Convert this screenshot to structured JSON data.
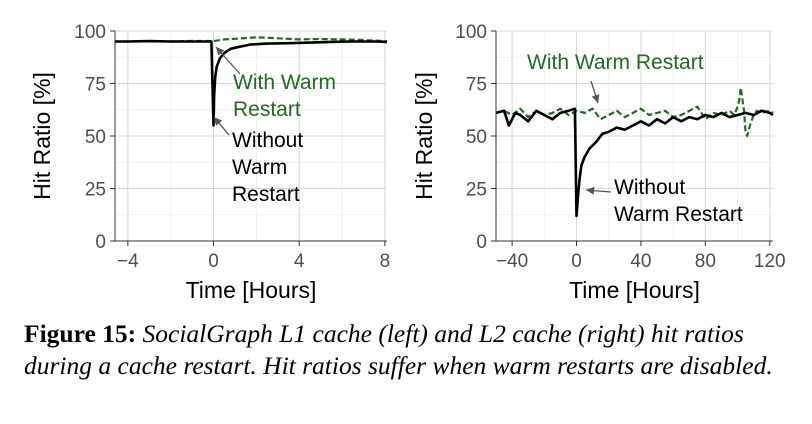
{
  "chart_data": [
    {
      "type": "line",
      "xlabel": "Time [Hours]",
      "ylabel": "Hit Ratio [%]",
      "xlim": [
        -4.6,
        8.1
      ],
      "ylim": [
        0,
        100
      ],
      "xticks": [
        -4,
        0,
        4,
        8
      ],
      "yticks": [
        0,
        25,
        50,
        75,
        100
      ],
      "tick_labels_x": [
        "−4",
        "0",
        "4",
        "8"
      ],
      "tick_labels_y": [
        "0",
        "25",
        "50",
        "75",
        "100"
      ],
      "grid": true,
      "series": [
        {
          "name": "With Warm Restart",
          "color": "#1f6b1f",
          "style": "dashed",
          "x": [
            -4.6,
            -4,
            -3,
            -2,
            -1,
            0,
            0.5,
            1,
            2,
            3,
            4,
            5,
            6,
            7,
            8,
            8.1
          ],
          "y": [
            95,
            95,
            95.2,
            95,
            95.3,
            95.2,
            96,
            96.3,
            97,
            96.5,
            96,
            96.2,
            96,
            95.7,
            95.2,
            95
          ]
        },
        {
          "name": "Without Warm Restart",
          "color": "#000000",
          "style": "solid",
          "x": [
            -4.6,
            -4,
            -3,
            -2,
            -1,
            -0.1,
            0,
            0.03,
            0.08,
            0.15,
            0.3,
            0.5,
            0.8,
            1.2,
            1.7,
            2.5,
            3.5,
            4.5,
            5.5,
            6.5,
            7.5,
            8.1
          ],
          "y": [
            95,
            95,
            95.2,
            95,
            95,
            95,
            55,
            70,
            78,
            83,
            87,
            89.5,
            91.5,
            92.5,
            93.5,
            94,
            94.2,
            94.5,
            94.8,
            95,
            95,
            94.8
          ]
        }
      ],
      "annotations": [
        {
          "lines": [
            "With Warm",
            "Restart"
          ],
          "color": "#1f6b1f"
        },
        {
          "lines": [
            "Without",
            "Warm",
            "Restart"
          ],
          "color": "#000000"
        }
      ]
    },
    {
      "type": "line",
      "xlabel": "Time [Hours]",
      "ylabel": "Hit Ratio [%]",
      "xlim": [
        -50,
        122
      ],
      "ylim": [
        0,
        100
      ],
      "xticks": [
        -40,
        0,
        40,
        80,
        120
      ],
      "yticks": [
        0,
        25,
        50,
        75,
        100
      ],
      "tick_labels_x": [
        "−40",
        "0",
        "40",
        "80",
        "120"
      ],
      "tick_labels_y": [
        "0",
        "25",
        "50",
        "75",
        "100"
      ],
      "grid": true,
      "series": [
        {
          "name": "With Warm Restart",
          "color": "#1f6b1f",
          "style": "dashed",
          "x": [
            -50,
            -45,
            -40,
            -35,
            -30,
            -25,
            -20,
            -15,
            -10,
            -5,
            0,
            5,
            10,
            15,
            20,
            25,
            30,
            35,
            40,
            45,
            50,
            55,
            60,
            65,
            70,
            75,
            80,
            85,
            90,
            95,
            98,
            100,
            101,
            102,
            104,
            105,
            106,
            108,
            110,
            112,
            115,
            120,
            122
          ],
          "y": [
            61,
            62,
            60,
            63,
            59,
            62,
            60,
            61,
            63,
            60,
            62,
            61,
            63,
            58,
            60,
            62,
            59,
            61,
            63,
            60,
            61,
            62,
            59,
            60,
            62,
            64,
            58,
            61,
            60,
            62,
            60,
            64,
            67,
            73,
            62,
            52,
            50,
            56,
            60,
            62,
            61,
            62,
            61
          ]
        },
        {
          "name": "Without Warm Restart",
          "color": "#000000",
          "style": "solid",
          "x": [
            -50,
            -45,
            -42,
            -38,
            -35,
            -30,
            -25,
            -20,
            -15,
            -10,
            -5,
            -1,
            0,
            1,
            2,
            3,
            5,
            8,
            12,
            16,
            20,
            25,
            30,
            35,
            40,
            45,
            50,
            55,
            60,
            65,
            70,
            75,
            80,
            85,
            90,
            95,
            100,
            105,
            110,
            115,
            120,
            122
          ],
          "y": [
            61,
            62,
            55,
            61,
            60,
            57,
            62,
            60,
            58,
            61,
            62,
            63,
            12,
            22,
            30,
            36,
            40,
            44,
            47,
            51,
            52,
            54,
            53,
            55,
            57,
            55,
            58,
            56,
            59,
            57,
            59,
            58,
            60,
            59,
            61,
            59,
            60,
            61,
            60,
            62,
            61,
            60
          ]
        }
      ],
      "annotations": [
        {
          "lines": [
            "With Warm Restart"
          ],
          "color": "#1f6b1f"
        },
        {
          "lines": [
            "Without",
            "Warm Restart"
          ],
          "color": "#000000"
        }
      ]
    }
  ],
  "caption": {
    "label": "Figure 15:",
    "text": "SocialGraph L1 cache (left) and L2 cache (right) hit ratios during a cache restart. Hit ratios suffer when warm restarts are disabled."
  }
}
